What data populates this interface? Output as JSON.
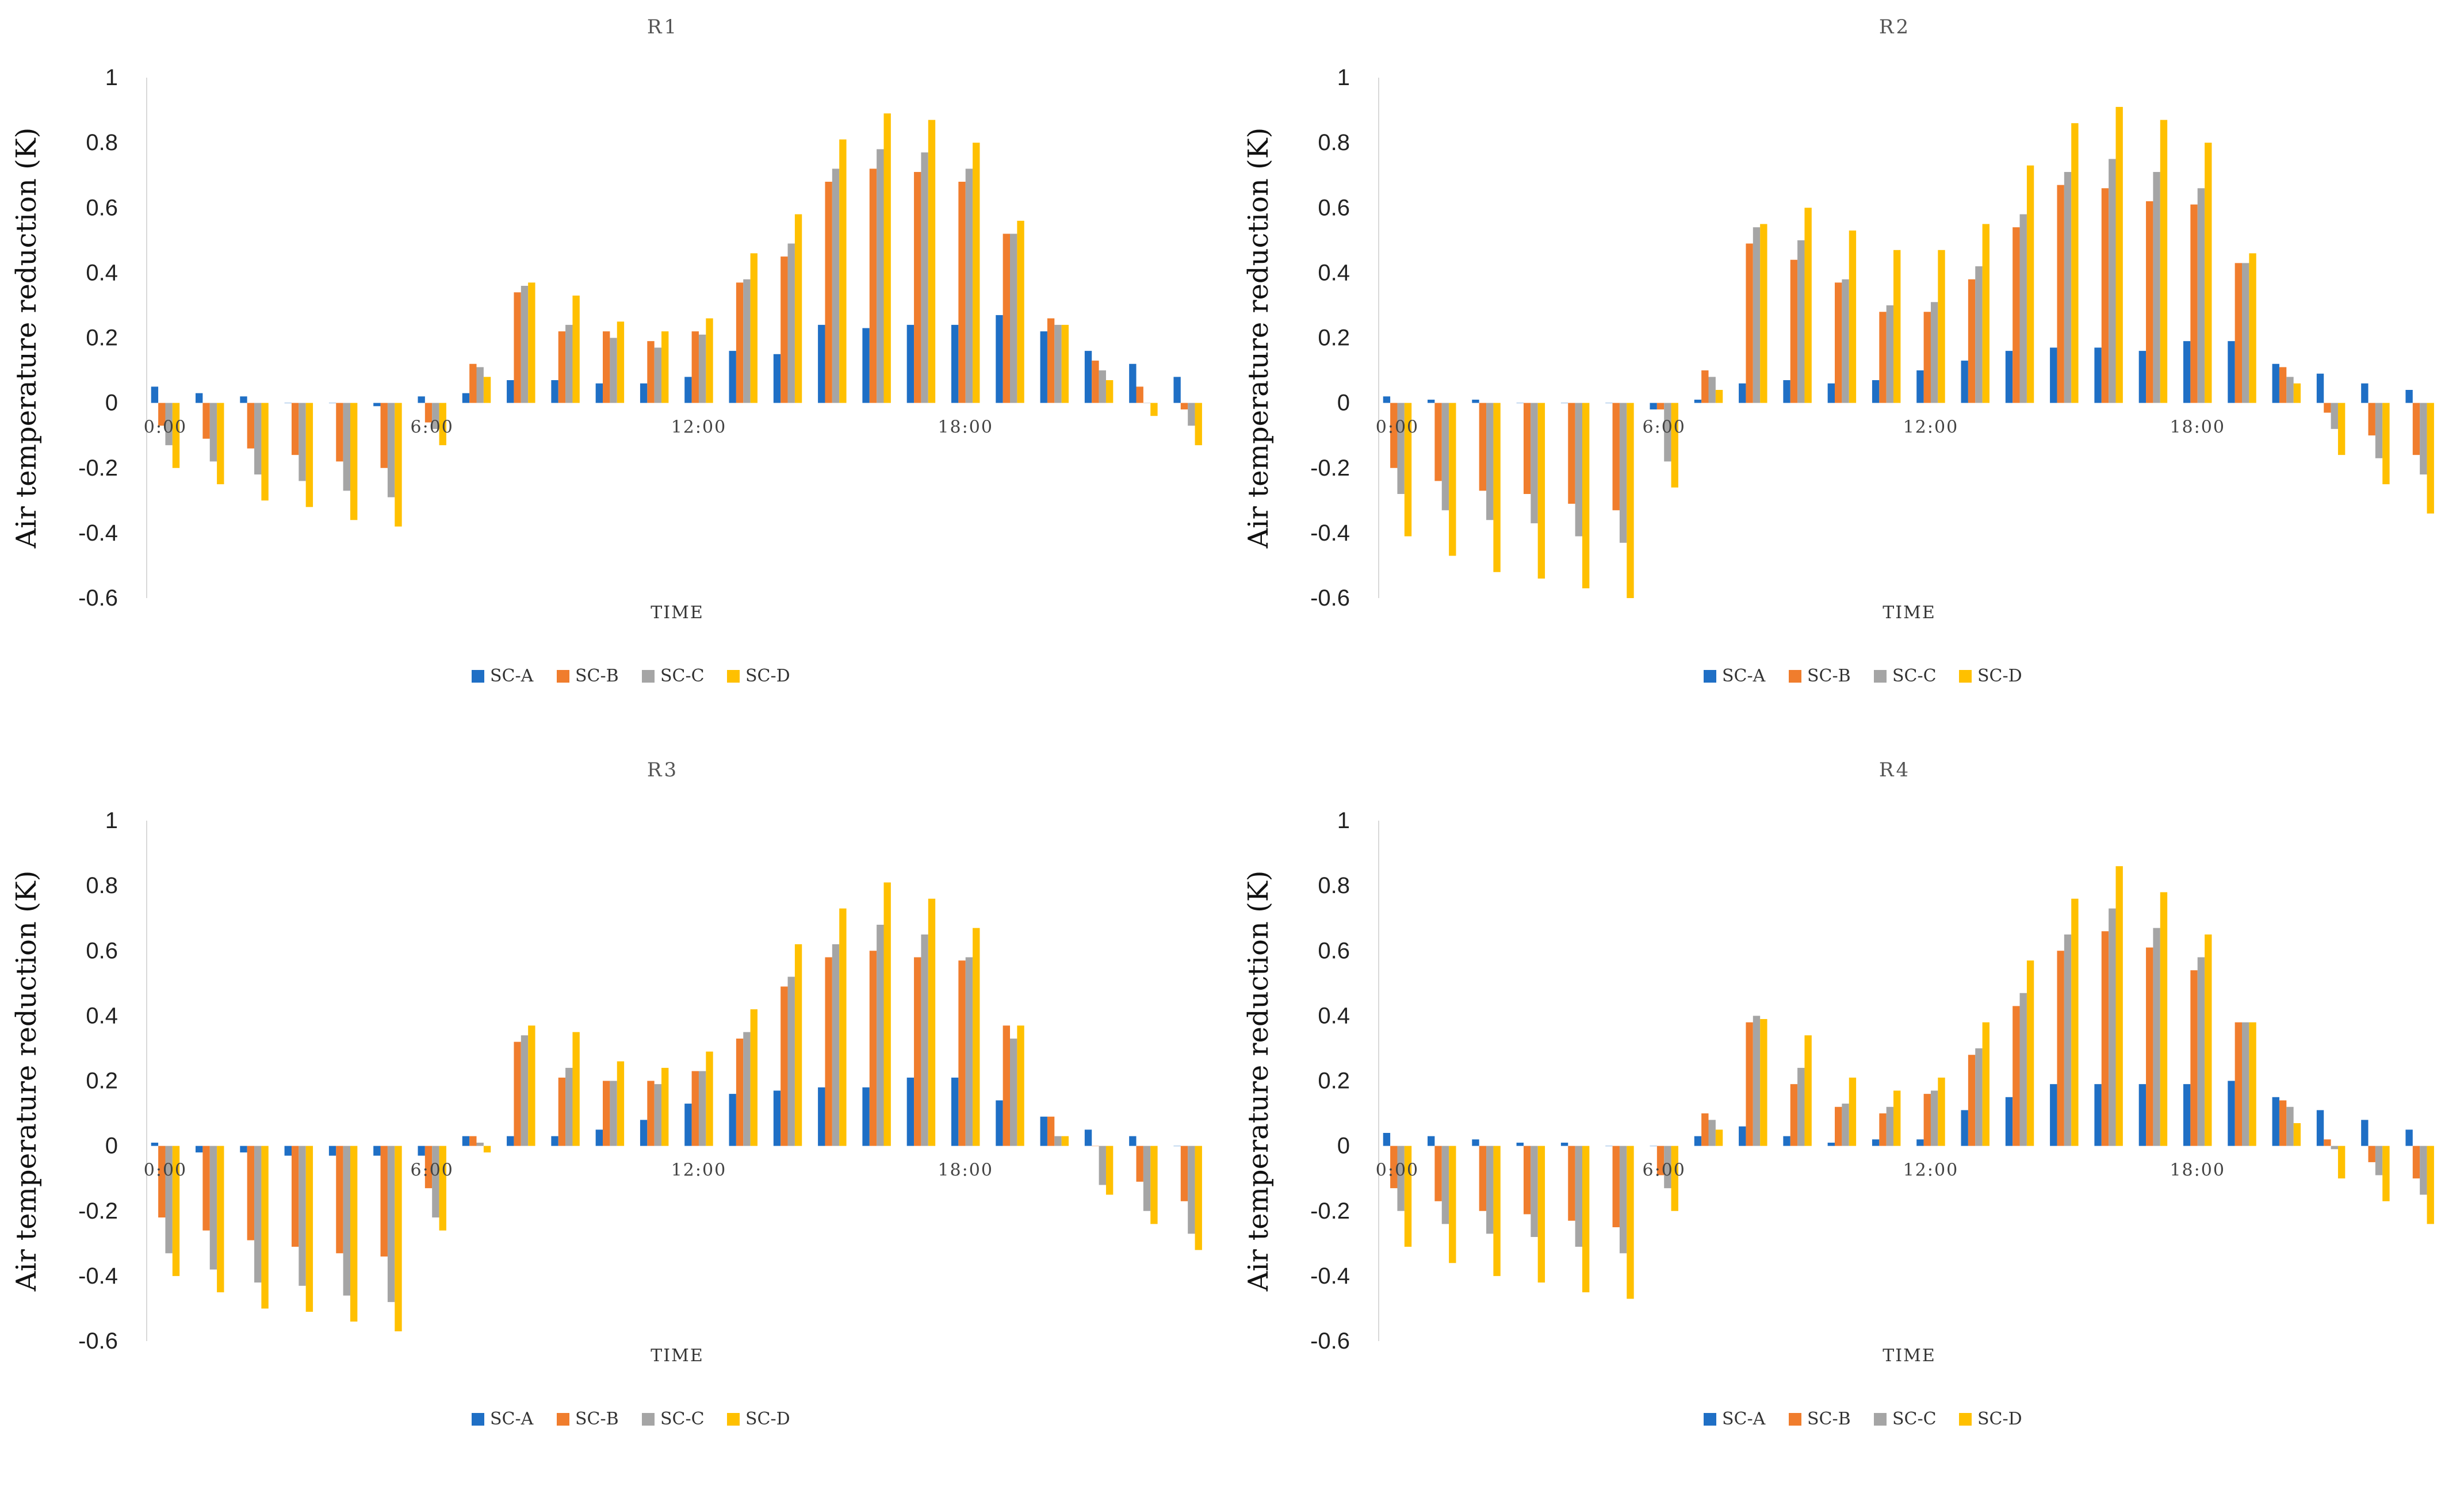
{
  "series_names": [
    "SC-A",
    "SC-B",
    "SC-C",
    "SC-D"
  ],
  "series_colors": [
    "#1f6fc5",
    "#f07d2d",
    "#a5a5a5",
    "#ffc000"
  ],
  "chart_data": [
    {
      "type": "bar",
      "title": "R1",
      "xlabel": "TIME",
      "ylabel": "Air temperature reduction (K)",
      "ylim": [
        -0.6,
        1
      ],
      "yticks": [
        "1",
        "0.8",
        "0.6",
        "0.4",
        "0.2",
        "0",
        "-0.2",
        "-0.4",
        "-0.6"
      ],
      "xtick_labels": [
        {
          "hour": 0,
          "label": "0:00"
        },
        {
          "hour": 6,
          "label": "6:00"
        },
        {
          "hour": 12,
          "label": "12:00"
        },
        {
          "hour": 18,
          "label": "18:00"
        }
      ],
      "hours": [
        0,
        1,
        2,
        3,
        4,
        5,
        6,
        7,
        8,
        9,
        10,
        11,
        12,
        13,
        14,
        15,
        16,
        17,
        18,
        19,
        20,
        21,
        22,
        23
      ],
      "series": [
        {
          "name": "SC-A",
          "values": [
            0.05,
            0.03,
            0.02,
            0.0,
            0.0,
            -0.01,
            0.02,
            0.03,
            0.07,
            0.07,
            0.06,
            0.06,
            0.08,
            0.16,
            0.15,
            0.24,
            0.23,
            0.24,
            0.24,
            0.27,
            0.22,
            0.16,
            0.12,
            0.08
          ]
        },
        {
          "name": "SC-B",
          "values": [
            -0.07,
            -0.11,
            -0.14,
            -0.16,
            -0.18,
            -0.2,
            -0.06,
            0.12,
            0.34,
            0.22,
            0.22,
            0.19,
            0.22,
            0.37,
            0.45,
            0.68,
            0.72,
            0.71,
            0.68,
            0.52,
            0.26,
            0.13,
            0.05,
            -0.02
          ]
        },
        {
          "name": "SC-C",
          "values": [
            -0.13,
            -0.18,
            -0.22,
            -0.24,
            -0.27,
            -0.29,
            -0.08,
            0.11,
            0.36,
            0.24,
            0.2,
            0.17,
            0.21,
            0.38,
            0.49,
            0.72,
            0.78,
            0.77,
            0.72,
            0.52,
            0.24,
            0.1,
            0.0,
            -0.07
          ]
        },
        {
          "name": "SC-D",
          "values": [
            -0.2,
            -0.25,
            -0.3,
            -0.32,
            -0.36,
            -0.38,
            -0.13,
            0.08,
            0.37,
            0.33,
            0.25,
            0.22,
            0.26,
            0.46,
            0.58,
            0.81,
            0.89,
            0.87,
            0.8,
            0.56,
            0.24,
            0.07,
            -0.04,
            -0.13
          ]
        }
      ]
    },
    {
      "type": "bar",
      "title": "R2",
      "xlabel": "TIME",
      "ylabel": "Air temperature reduction (K)",
      "ylim": [
        -0.6,
        1
      ],
      "yticks": [
        "1",
        "0.8",
        "0.6",
        "0.4",
        "0.2",
        "0",
        "-0.2",
        "-0.4",
        "-0.6"
      ],
      "xtick_labels": [
        {
          "hour": 0,
          "label": "0:00"
        },
        {
          "hour": 6,
          "label": "6:00"
        },
        {
          "hour": 12,
          "label": "12:00"
        },
        {
          "hour": 18,
          "label": "18:00"
        }
      ],
      "hours": [
        0,
        1,
        2,
        3,
        4,
        5,
        6,
        7,
        8,
        9,
        10,
        11,
        12,
        13,
        14,
        15,
        16,
        17,
        18,
        19,
        20,
        21,
        22,
        23
      ],
      "series": [
        {
          "name": "SC-A",
          "values": [
            0.02,
            0.01,
            0.01,
            0.0,
            0.0,
            0.0,
            -0.02,
            0.01,
            0.06,
            0.07,
            0.06,
            0.07,
            0.1,
            0.13,
            0.16,
            0.17,
            0.17,
            0.16,
            0.19,
            0.19,
            0.12,
            0.09,
            0.06,
            0.04
          ]
        },
        {
          "name": "SC-B",
          "values": [
            -0.2,
            -0.24,
            -0.27,
            -0.28,
            -0.31,
            -0.33,
            -0.02,
            0.1,
            0.49,
            0.44,
            0.37,
            0.28,
            0.28,
            0.38,
            0.54,
            0.67,
            0.66,
            0.62,
            0.61,
            0.43,
            0.11,
            -0.03,
            -0.1,
            -0.16
          ]
        },
        {
          "name": "SC-C",
          "values": [
            -0.28,
            -0.33,
            -0.36,
            -0.37,
            -0.41,
            -0.43,
            -0.18,
            0.08,
            0.54,
            0.5,
            0.38,
            0.3,
            0.31,
            0.42,
            0.58,
            0.71,
            0.75,
            0.71,
            0.66,
            0.43,
            0.08,
            -0.08,
            -0.17,
            -0.22
          ]
        },
        {
          "name": "SC-D",
          "values": [
            -0.41,
            -0.47,
            -0.52,
            -0.54,
            -0.57,
            -0.6,
            -0.26,
            0.04,
            0.55,
            0.6,
            0.53,
            0.47,
            0.47,
            0.55,
            0.73,
            0.86,
            0.91,
            0.87,
            0.8,
            0.46,
            0.06,
            -0.16,
            -0.25,
            -0.34
          ]
        }
      ]
    },
    {
      "type": "bar",
      "title": "R3",
      "xlabel": "TIME",
      "ylabel": "Air temperature reduction (K)",
      "ylim": [
        -0.6,
        1
      ],
      "yticks": [
        "1",
        "0.8",
        "0.6",
        "0.4",
        "0.2",
        "0",
        "-0.2",
        "-0.4",
        "-0.6"
      ],
      "xtick_labels": [
        {
          "hour": 0,
          "label": "0:00"
        },
        {
          "hour": 6,
          "label": "6:00"
        },
        {
          "hour": 12,
          "label": "12:00"
        },
        {
          "hour": 18,
          "label": "18:00"
        }
      ],
      "hours": [
        0,
        1,
        2,
        3,
        4,
        5,
        6,
        7,
        8,
        9,
        10,
        11,
        12,
        13,
        14,
        15,
        16,
        17,
        18,
        19,
        20,
        21,
        22,
        23
      ],
      "series": [
        {
          "name": "SC-A",
          "values": [
            0.01,
            -0.02,
            -0.02,
            -0.03,
            -0.03,
            -0.03,
            -0.03,
            0.03,
            0.03,
            0.03,
            0.05,
            0.08,
            0.13,
            0.16,
            0.17,
            0.18,
            0.18,
            0.21,
            0.21,
            0.14,
            0.09,
            0.05,
            0.03,
            0.0
          ]
        },
        {
          "name": "SC-B",
          "values": [
            -0.22,
            -0.26,
            -0.29,
            -0.31,
            -0.33,
            -0.34,
            -0.13,
            0.03,
            0.32,
            0.21,
            0.2,
            0.2,
            0.23,
            0.33,
            0.49,
            0.58,
            0.6,
            0.58,
            0.57,
            0.37,
            0.09,
            0.0,
            -0.11,
            -0.17
          ]
        },
        {
          "name": "SC-C",
          "values": [
            -0.33,
            -0.38,
            -0.42,
            -0.43,
            -0.46,
            -0.48,
            -0.22,
            0.01,
            0.34,
            0.24,
            0.2,
            0.19,
            0.23,
            0.35,
            0.52,
            0.62,
            0.68,
            0.65,
            0.58,
            0.33,
            0.03,
            -0.12,
            -0.2,
            -0.27
          ]
        },
        {
          "name": "SC-D",
          "values": [
            -0.4,
            -0.45,
            -0.5,
            -0.51,
            -0.54,
            -0.57,
            -0.26,
            -0.02,
            0.37,
            0.35,
            0.26,
            0.24,
            0.29,
            0.42,
            0.62,
            0.73,
            0.81,
            0.76,
            0.67,
            0.37,
            0.03,
            -0.15,
            -0.24,
            -0.32
          ]
        }
      ]
    },
    {
      "type": "bar",
      "title": "R4",
      "xlabel": "TIME",
      "ylabel": "Air temperature reduction (K)",
      "ylim": [
        -0.6,
        1
      ],
      "yticks": [
        "1",
        "0.8",
        "0.6",
        "0.4",
        "0.2",
        "0",
        "-0.2",
        "-0.4",
        "-0.6"
      ],
      "xtick_labels": [
        {
          "hour": 0,
          "label": "0:00"
        },
        {
          "hour": 6,
          "label": "6:00"
        },
        {
          "hour": 12,
          "label": "12:00"
        },
        {
          "hour": 18,
          "label": "18:00"
        }
      ],
      "hours": [
        0,
        1,
        2,
        3,
        4,
        5,
        6,
        7,
        8,
        9,
        10,
        11,
        12,
        13,
        14,
        15,
        16,
        17,
        18,
        19,
        20,
        21,
        22,
        23
      ],
      "series": [
        {
          "name": "SC-A",
          "values": [
            0.04,
            0.03,
            0.02,
            0.01,
            0.01,
            0.0,
            0.0,
            0.03,
            0.06,
            0.03,
            0.01,
            0.02,
            0.02,
            0.11,
            0.15,
            0.19,
            0.19,
            0.19,
            0.19,
            0.2,
            0.15,
            0.11,
            0.08,
            0.05
          ]
        },
        {
          "name": "SC-B",
          "values": [
            -0.13,
            -0.17,
            -0.2,
            -0.21,
            -0.23,
            -0.25,
            -0.09,
            0.1,
            0.38,
            0.19,
            0.12,
            0.1,
            0.16,
            0.28,
            0.43,
            0.6,
            0.66,
            0.61,
            0.54,
            0.38,
            0.14,
            0.02,
            -0.05,
            -0.1
          ]
        },
        {
          "name": "SC-C",
          "values": [
            -0.2,
            -0.24,
            -0.27,
            -0.28,
            -0.31,
            -0.33,
            -0.13,
            0.08,
            0.4,
            0.24,
            0.13,
            0.12,
            0.17,
            0.3,
            0.47,
            0.65,
            0.73,
            0.67,
            0.58,
            0.38,
            0.12,
            -0.01,
            -0.09,
            -0.15
          ]
        },
        {
          "name": "SC-D",
          "values": [
            -0.31,
            -0.36,
            -0.4,
            -0.42,
            -0.45,
            -0.47,
            -0.2,
            0.05,
            0.39,
            0.34,
            0.21,
            0.17,
            0.21,
            0.38,
            0.57,
            0.76,
            0.86,
            0.78,
            0.65,
            0.38,
            0.07,
            -0.1,
            -0.17,
            -0.24
          ]
        }
      ]
    }
  ]
}
